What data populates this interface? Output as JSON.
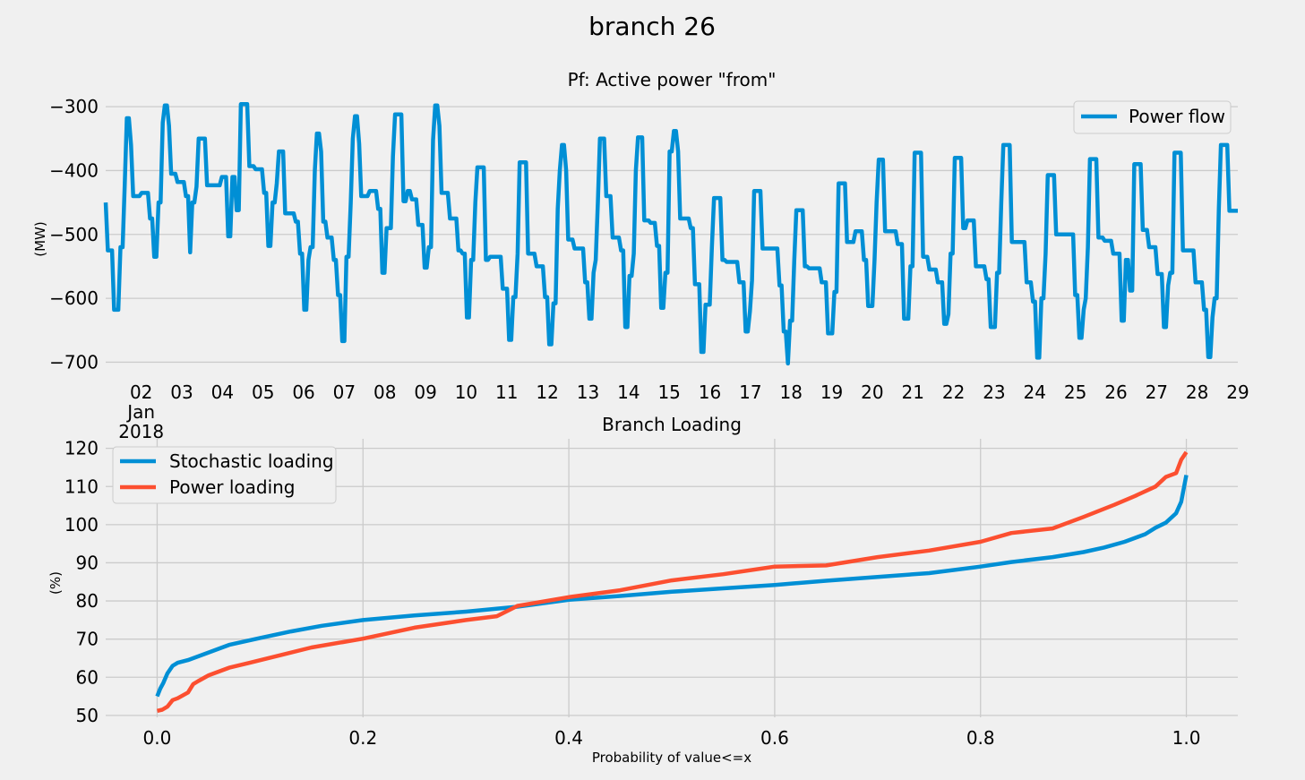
{
  "figure": {
    "title": "branch 26"
  },
  "chart_data": [
    {
      "type": "line",
      "title": "Pf: Active power \"from\"",
      "xlabel": "",
      "ylabel": "(MW)",
      "x_tick_labels": [
        "02",
        "03",
        "04",
        "05",
        "06",
        "07",
        "08",
        "09",
        "10",
        "11",
        "12",
        "13",
        "14",
        "15",
        "16",
        "17",
        "18",
        "19",
        "20",
        "21",
        "22",
        "23",
        "24",
        "25",
        "26",
        "27",
        "28",
        "29"
      ],
      "x_tick_sublabels": [
        "Jan",
        "2018"
      ],
      "y_ticks": [
        -300,
        -400,
        -500,
        -600,
        -700
      ],
      "y_tick_labels": [
        "−300",
        "−400",
        "−500",
        "−600",
        "−700"
      ],
      "ylim": [
        -705,
        -290
      ],
      "xlim_days": [
        "2018-01-01 03:00",
        "2018-01-29 00:00"
      ],
      "grid": true,
      "legend_position": "top-right",
      "series": [
        {
          "name": "Power flow",
          "color": "#008fd5",
          "values": [
            -450,
            -525,
            -525,
            -525,
            -618,
            -618,
            -618,
            -520,
            -520,
            -425,
            -318,
            -318,
            -360,
            -440,
            -440,
            -440,
            -440,
            -435,
            -435,
            -435,
            -435,
            -475,
            -475,
            -535,
            -535,
            -450,
            -450,
            -325,
            -298,
            -298,
            -330,
            -405,
            -405,
            -405,
            -418,
            -418,
            -418,
            -418,
            -440,
            -440,
            -528,
            -450,
            -450,
            -425,
            -350,
            -350,
            -350,
            -350,
            -423,
            -423,
            -423,
            -423,
            -423,
            -423,
            -423,
            -410,
            -410,
            -410,
            -503,
            -503,
            -410,
            -410,
            -462,
            -462,
            -296,
            -296,
            -296,
            -296,
            -393,
            -393,
            -393,
            -398,
            -398,
            -398,
            -398,
            -435,
            -435,
            -518,
            -518,
            -450,
            -450,
            -420,
            -370,
            -370,
            -370,
            -467,
            -467,
            -467,
            -467,
            -467,
            -480,
            -480,
            -530,
            -530,
            -618,
            -618,
            -540,
            -520,
            -520,
            -400,
            -342,
            -342,
            -370,
            -480,
            -480,
            -505,
            -505,
            -505,
            -540,
            -540,
            -595,
            -595,
            -667,
            -667,
            -535,
            -535,
            -450,
            -350,
            -315,
            -315,
            -358,
            -440,
            -440,
            -440,
            -440,
            -432,
            -432,
            -432,
            -432,
            -460,
            -460,
            -560,
            -560,
            -490,
            -490,
            -490,
            -378,
            -312,
            -312,
            -312,
            -312,
            -448,
            -448,
            -432,
            -432,
            -445,
            -445,
            -445,
            -485,
            -485,
            -485,
            -552,
            -552,
            -520,
            -520,
            -352,
            -298,
            -298,
            -330,
            -435,
            -435,
            -435,
            -435,
            -475,
            -475,
            -475,
            -475,
            -525,
            -525,
            -530,
            -530,
            -630,
            -630,
            -540,
            -540,
            -450,
            -395,
            -395,
            -395,
            -395,
            -540,
            -540,
            -535,
            -535,
            -535,
            -535,
            -535,
            -535,
            -585,
            -585,
            -585,
            -665,
            -665,
            -598,
            -598,
            -530,
            -387,
            -387,
            -387,
            -387,
            -530,
            -530,
            -530,
            -530,
            -550,
            -550,
            -550,
            -550,
            -598,
            -598,
            -672,
            -672,
            -608,
            -608,
            -460,
            -400,
            -360,
            -360,
            -400,
            -508,
            -508,
            -508,
            -522,
            -522,
            -522,
            -522,
            -522,
            -575,
            -575,
            -632,
            -632,
            -560,
            -540,
            -450,
            -350,
            -350,
            -350,
            -440,
            -440,
            -440,
            -505,
            -505,
            -505,
            -505,
            -525,
            -525,
            -645,
            -645,
            -565,
            -565,
            -530,
            -400,
            -348,
            -348,
            -348,
            -478,
            -478,
            -478,
            -482,
            -482,
            -482,
            -518,
            -518,
            -615,
            -615,
            -560,
            -560,
            -370,
            -370,
            -338,
            -338,
            -370,
            -475,
            -475,
            -475,
            -475,
            -475,
            -490,
            -490,
            -578,
            -578,
            -578,
            -684,
            -684,
            -610,
            -610,
            -610,
            -520,
            -443,
            -443,
            -443,
            -443,
            -540,
            -540,
            -543,
            -543,
            -543,
            -543,
            -543,
            -543,
            -575,
            -575,
            -575,
            -652,
            -652,
            -620,
            -572,
            -432,
            -432,
            -432,
            -432,
            -522,
            -522,
            -522,
            -522,
            -522,
            -522,
            -522,
            -522,
            -580,
            -580,
            -652,
            -652,
            -702,
            -635,
            -635,
            -540,
            -462,
            -462,
            -462,
            -462,
            -550,
            -550,
            -553,
            -553,
            -553,
            -553,
            -553,
            -553,
            -575,
            -575,
            -575,
            -655,
            -655,
            -655,
            -590,
            -590,
            -420,
            -420,
            -420,
            -420,
            -512,
            -512,
            -512,
            -512,
            -495,
            -495,
            -495,
            -495,
            -540,
            -540,
            -612,
            -612,
            -612,
            -540,
            -450,
            -383,
            -383,
            -383,
            -495,
            -495,
            -495,
            -495,
            -495,
            -495,
            -515,
            -515,
            -515,
            -632,
            -632,
            -632,
            -550,
            -550,
            -372,
            -372,
            -372,
            -372,
            -535,
            -535,
            -535,
            -555,
            -555,
            -555,
            -555,
            -575,
            -575,
            -575,
            -640,
            -640,
            -625,
            -530,
            -530,
            -380,
            -380,
            -380,
            -380,
            -490,
            -490,
            -478,
            -478,
            -478,
            -478,
            -550,
            -550,
            -550,
            -550,
            -550,
            -570,
            -570,
            -645,
            -645,
            -645,
            -560,
            -560,
            -450,
            -360,
            -360,
            -360,
            -360,
            -512,
            -512,
            -512,
            -512,
            -512,
            -512,
            -512,
            -575,
            -575,
            -575,
            -605,
            -605,
            -693,
            -693,
            -600,
            -600,
            -530,
            -407,
            -407,
            -407,
            -407,
            -500,
            -500,
            -500,
            -500,
            -500,
            -500,
            -500,
            -500,
            -500,
            -595,
            -595,
            -662,
            -662,
            -618,
            -600,
            -520,
            -382,
            -382,
            -382,
            -382,
            -505,
            -505,
            -505,
            -510,
            -510,
            -510,
            -510,
            -530,
            -530,
            -530,
            -530,
            -635,
            -635,
            -540,
            -540,
            -588,
            -588,
            -390,
            -390,
            -390,
            -390,
            -493,
            -493,
            -493,
            -520,
            -520,
            -520,
            -520,
            -562,
            -562,
            -562,
            -645,
            -645,
            -580,
            -560,
            -560,
            -372,
            -372,
            -372,
            -372,
            -525,
            -525,
            -525,
            -525,
            -525,
            -525,
            -575,
            -575,
            -575,
            -575,
            -618,
            -618,
            -692,
            -692,
            -630,
            -600,
            -600,
            -460,
            -360,
            -360,
            -360,
            -360,
            -463,
            -463,
            -463,
            -463,
            -463
          ]
        }
      ]
    },
    {
      "type": "line",
      "title": "Branch Loading",
      "xlabel": "Probability of value<=x",
      "ylabel": "(%)",
      "x_ticks": [
        0.0,
        0.2,
        0.4,
        0.6,
        0.8,
        1.0
      ],
      "x_tick_labels": [
        "0.0",
        "0.2",
        "0.4",
        "0.6",
        "0.8",
        "1.0"
      ],
      "y_ticks": [
        50,
        60,
        70,
        80,
        90,
        100,
        110,
        120
      ],
      "y_tick_labels": [
        "50",
        "60",
        "70",
        "80",
        "90",
        "100",
        "110",
        "120"
      ],
      "xlim": [
        -0.05,
        1.05
      ],
      "ylim": [
        49.5,
        122.5
      ],
      "grid": true,
      "legend_position": "top-left",
      "series": [
        {
          "name": "Stochastic loading",
          "color": "#008fd5",
          "x": [
            0.0,
            0.003,
            0.006,
            0.01,
            0.015,
            0.02,
            0.03,
            0.05,
            0.07,
            0.1,
            0.13,
            0.16,
            0.2,
            0.25,
            0.3,
            0.35,
            0.4,
            0.45,
            0.5,
            0.55,
            0.6,
            0.65,
            0.7,
            0.75,
            0.8,
            0.83,
            0.87,
            0.9,
            0.92,
            0.94,
            0.96,
            0.97,
            0.98,
            0.99,
            0.995,
            1.0
          ],
          "y": [
            55,
            57,
            58.5,
            61,
            63,
            63.8,
            64.5,
            66.5,
            68.5,
            70.3,
            72,
            73.5,
            75,
            76.2,
            77.2,
            78.5,
            80.3,
            81.3,
            82.4,
            83.3,
            84.2,
            85.3,
            86.3,
            87.3,
            89,
            90.2,
            91.5,
            92.8,
            94,
            95.5,
            97.5,
            99.2,
            100.5,
            103,
            106,
            113
          ]
        },
        {
          "name": "Power loading",
          "color": "#fc4f30",
          "x": [
            0.0,
            0.005,
            0.01,
            0.015,
            0.02,
            0.03,
            0.035,
            0.04,
            0.05,
            0.07,
            0.09,
            0.12,
            0.15,
            0.18,
            0.2,
            0.25,
            0.3,
            0.33,
            0.35,
            0.4,
            0.45,
            0.5,
            0.55,
            0.6,
            0.65,
            0.7,
            0.75,
            0.8,
            0.83,
            0.87,
            0.9,
            0.93,
            0.95,
            0.97,
            0.98,
            0.99,
            0.995,
            1.0
          ],
          "y": [
            51.2,
            51.5,
            52.3,
            54,
            54.5,
            56,
            58.2,
            59,
            60.5,
            62.5,
            63.8,
            65.8,
            67.8,
            69.2,
            70.1,
            73,
            75,
            76,
            78.7,
            81,
            82.8,
            85.4,
            87,
            89,
            89.3,
            91.5,
            93.2,
            95.5,
            97.8,
            99,
            102,
            105.2,
            107.5,
            110,
            112.5,
            113.5,
            117,
            119
          ]
        }
      ]
    }
  ]
}
